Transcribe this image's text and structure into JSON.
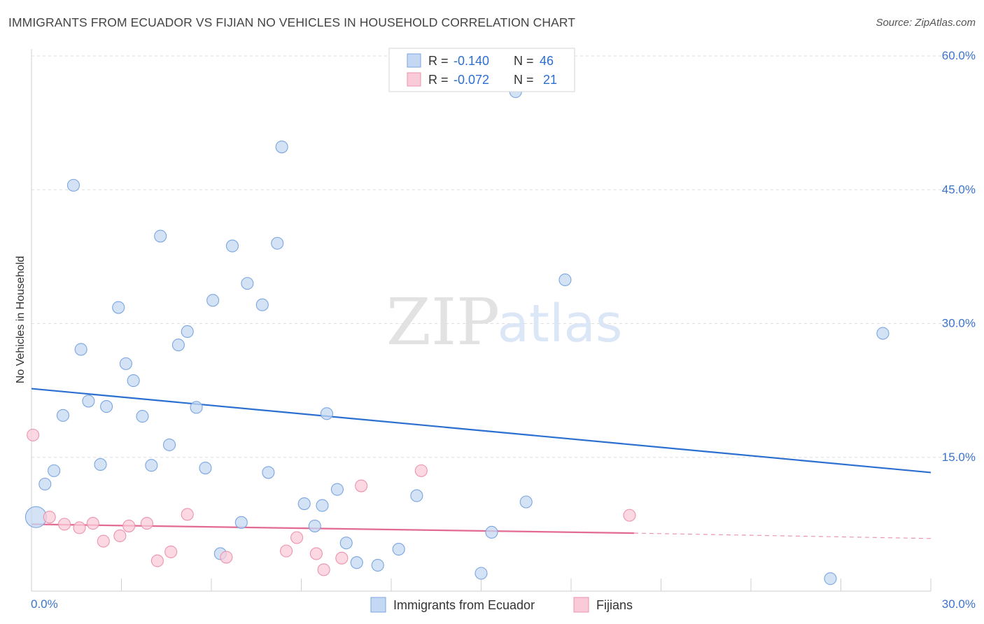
{
  "title": "IMMIGRANTS FROM ECUADOR VS FIJIAN NO VEHICLES IN HOUSEHOLD CORRELATION CHART",
  "source": "Source: ZipAtlas.com",
  "watermark": {
    "zip": "ZIP",
    "atlas": "atlas"
  },
  "legend_box": {
    "rows": [
      {
        "r_label": "R =",
        "r_value": "-0.140",
        "n_label": "N =",
        "n_value": "46"
      },
      {
        "r_label": "R =",
        "r_value": "-0.072",
        "n_label": "N =",
        "n_value": "21"
      }
    ]
  },
  "colors": {
    "blue_fill": "#c5d8f3",
    "blue_stroke": "#7aa6e0",
    "blue_line": "#2b6fd0",
    "pink_fill": "#f9cbd8",
    "pink_stroke": "#ec93ae",
    "pink_line": "#e26a93",
    "tick_label": "#3d74c9",
    "grid": "#dddddd"
  },
  "chart_data": {
    "type": "scatter",
    "ylabel": "No Vehicles in Household",
    "xlabel": "",
    "xlim": [
      0,
      30
    ],
    "ylim": [
      0,
      60
    ],
    "x_tick_labels": [
      "0.0%",
      "30.0%"
    ],
    "y_ticks": [
      15,
      30,
      45,
      60
    ],
    "y_tick_labels": [
      "15.0%",
      "30.0%",
      "45.0%",
      "60.0%"
    ],
    "grid": true,
    "legend_position": "bottom",
    "series": [
      {
        "name": "Immigrants from Ecuador",
        "color": "#7aa6e0",
        "trend": {
          "x": [
            0,
            30
          ],
          "y": [
            22.7,
            13.3
          ],
          "dashed_from": null
        },
        "points": [
          {
            "x": 0.15,
            "y": 8.3,
            "big": true
          },
          {
            "x": 1.4,
            "y": 45.5
          },
          {
            "x": 8.35,
            "y": 49.8
          },
          {
            "x": 16.15,
            "y": 56.0
          },
          {
            "x": 4.3,
            "y": 39.8
          },
          {
            "x": 6.7,
            "y": 38.7
          },
          {
            "x": 8.2,
            "y": 39.0
          },
          {
            "x": 7.2,
            "y": 34.5
          },
          {
            "x": 17.8,
            "y": 34.9
          },
          {
            "x": 6.05,
            "y": 32.6
          },
          {
            "x": 7.7,
            "y": 32.1
          },
          {
            "x": 2.9,
            "y": 31.8
          },
          {
            "x": 5.2,
            "y": 29.1
          },
          {
            "x": 4.9,
            "y": 27.6
          },
          {
            "x": 1.65,
            "y": 27.1
          },
          {
            "x": 3.15,
            "y": 25.5
          },
          {
            "x": 3.4,
            "y": 23.6
          },
          {
            "x": 1.9,
            "y": 21.3
          },
          {
            "x": 2.5,
            "y": 20.7
          },
          {
            "x": 5.5,
            "y": 20.6
          },
          {
            "x": 1.05,
            "y": 19.7
          },
          {
            "x": 3.7,
            "y": 19.6
          },
          {
            "x": 9.85,
            "y": 19.9
          },
          {
            "x": 4.6,
            "y": 16.4
          },
          {
            "x": 2.3,
            "y": 14.2
          },
          {
            "x": 4.0,
            "y": 14.1
          },
          {
            "x": 5.8,
            "y": 13.8
          },
          {
            "x": 0.75,
            "y": 13.5
          },
          {
            "x": 7.9,
            "y": 13.3
          },
          {
            "x": 0.45,
            "y": 12.0
          },
          {
            "x": 10.2,
            "y": 11.4
          },
          {
            "x": 12.85,
            "y": 10.7
          },
          {
            "x": 9.1,
            "y": 9.8
          },
          {
            "x": 9.7,
            "y": 9.6
          },
          {
            "x": 16.5,
            "y": 10.0
          },
          {
            "x": 7.0,
            "y": 7.7
          },
          {
            "x": 9.45,
            "y": 7.3
          },
          {
            "x": 15.35,
            "y": 6.6
          },
          {
            "x": 10.5,
            "y": 5.4
          },
          {
            "x": 12.25,
            "y": 4.7
          },
          {
            "x": 6.3,
            "y": 4.2
          },
          {
            "x": 10.85,
            "y": 3.2
          },
          {
            "x": 11.55,
            "y": 2.9
          },
          {
            "x": 15.0,
            "y": 2.0
          },
          {
            "x": 26.65,
            "y": 1.4
          },
          {
            "x": 28.4,
            "y": 28.9
          }
        ]
      },
      {
        "name": "Fijians",
        "color": "#ec93ae",
        "trend": {
          "x": [
            0,
            20.1
          ],
          "y": [
            7.5,
            6.5
          ],
          "dashed_to": {
            "x": 30,
            "y": 5.9
          }
        },
        "points": [
          {
            "x": 0.05,
            "y": 17.5
          },
          {
            "x": 0.6,
            "y": 8.3
          },
          {
            "x": 1.1,
            "y": 7.5
          },
          {
            "x": 1.6,
            "y": 7.1
          },
          {
            "x": 2.05,
            "y": 7.6
          },
          {
            "x": 2.4,
            "y": 5.6
          },
          {
            "x": 2.95,
            "y": 6.2
          },
          {
            "x": 3.25,
            "y": 7.3
          },
          {
            "x": 3.85,
            "y": 7.6
          },
          {
            "x": 4.2,
            "y": 3.4
          },
          {
            "x": 4.65,
            "y": 4.4
          },
          {
            "x": 5.2,
            "y": 8.6
          },
          {
            "x": 6.5,
            "y": 3.8
          },
          {
            "x": 8.5,
            "y": 4.5
          },
          {
            "x": 8.85,
            "y": 6.0
          },
          {
            "x": 9.5,
            "y": 4.2
          },
          {
            "x": 9.75,
            "y": 2.4
          },
          {
            "x": 10.35,
            "y": 3.7
          },
          {
            "x": 11.0,
            "y": 11.8
          },
          {
            "x": 13.0,
            "y": 13.5
          },
          {
            "x": 19.95,
            "y": 8.5
          }
        ]
      }
    ]
  }
}
